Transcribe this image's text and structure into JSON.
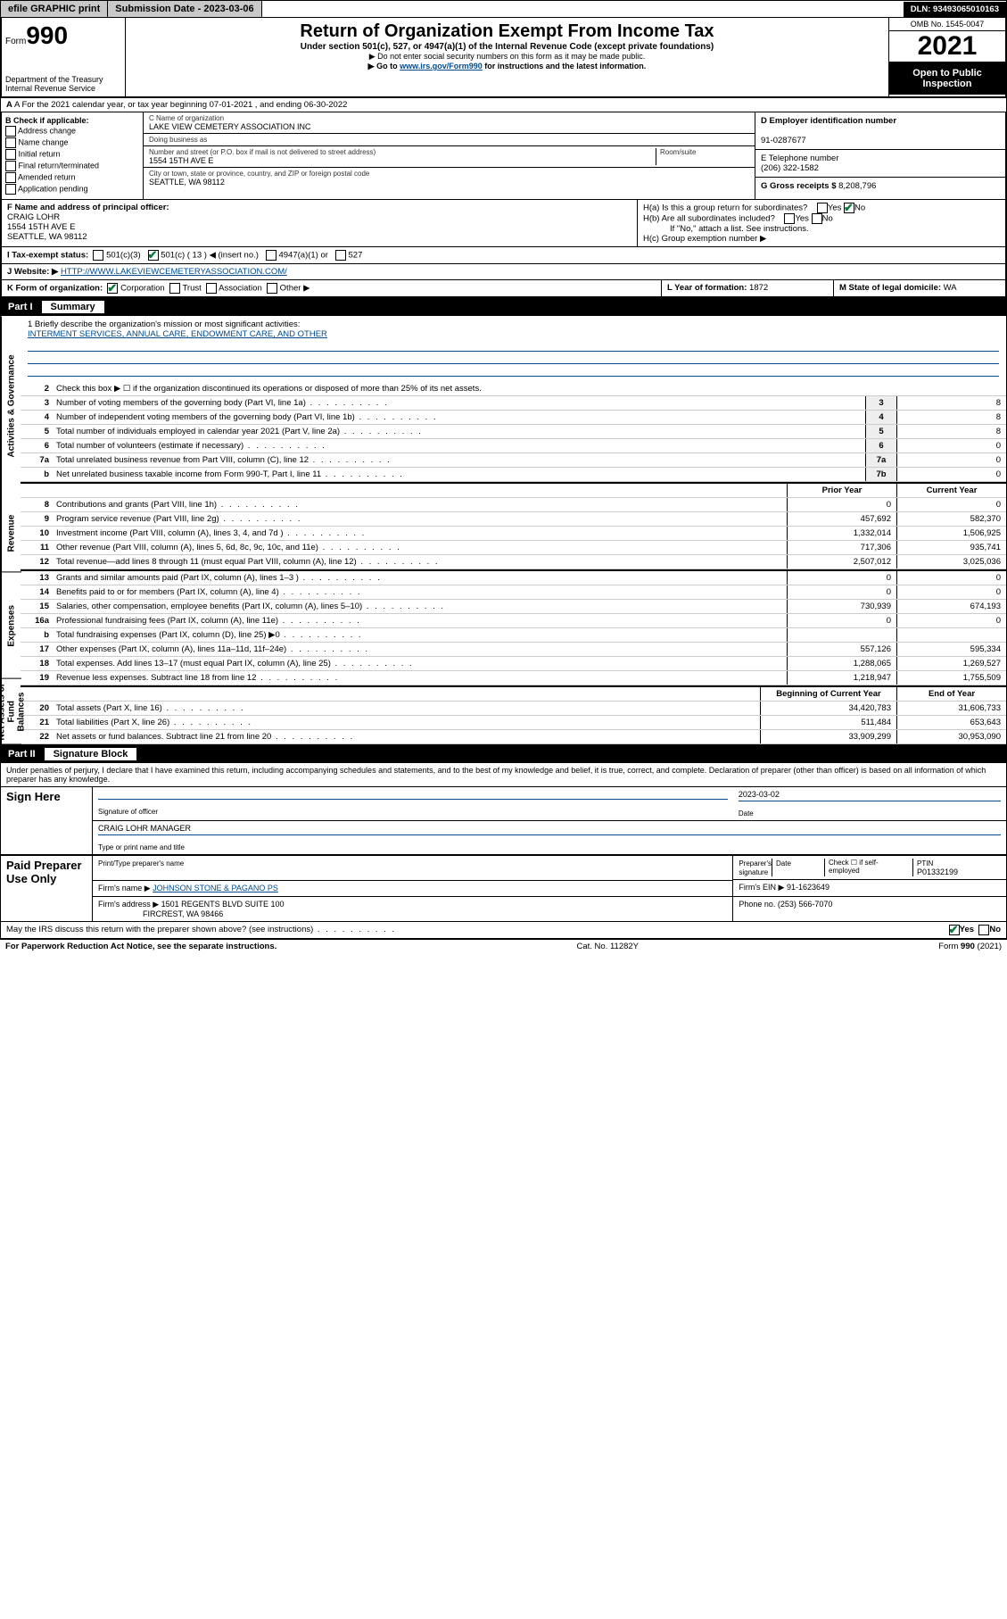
{
  "topbar": {
    "efile": "efile GRAPHIC print",
    "submission_label": "Submission Date - ",
    "submission_date": "2023-03-06",
    "dln_label": "DLN: ",
    "dln": "93493065010163"
  },
  "header": {
    "form_label": "Form",
    "form_number": "990",
    "dept": "Department of the Treasury",
    "irs": "Internal Revenue Service",
    "title": "Return of Organization Exempt From Income Tax",
    "subtitle": "Under section 501(c), 527, or 4947(a)(1) of the Internal Revenue Code (except private foundations)",
    "note1": "▶ Do not enter social security numbers on this form as it may be made public.",
    "note2_pre": "▶ Go to ",
    "note2_link": "www.irs.gov/Form990",
    "note2_post": " for instructions and the latest information.",
    "omb": "OMB No. 1545-0047",
    "year": "2021",
    "open": "Open to Public Inspection"
  },
  "rowA": {
    "text": "A For the 2021 calendar year, or tax year beginning 07-01-2021  , and ending 06-30-2022"
  },
  "boxB": {
    "label": "B Check if applicable:",
    "items": [
      "Address change",
      "Name change",
      "Initial return",
      "Final return/terminated",
      "Amended return",
      "Application pending"
    ]
  },
  "boxC": {
    "name_lbl": "C Name of organization",
    "name": "LAKE VIEW CEMETERY ASSOCIATION INC",
    "dba_lbl": "Doing business as",
    "dba": "",
    "street_lbl": "Number and street (or P.O. box if mail is not delivered to street address)",
    "street": "1554 15TH AVE E",
    "room_lbl": "Room/suite",
    "city_lbl": "City or town, state or province, country, and ZIP or foreign postal code",
    "city": "SEATTLE, WA  98112"
  },
  "boxD": {
    "ein_lbl": "D Employer identification number",
    "ein": "91-0287677",
    "phone_lbl": "E Telephone number",
    "phone": "(206) 322-1582",
    "gross_lbl": "G Gross receipts $ ",
    "gross": "8,208,796"
  },
  "boxF": {
    "lbl": "F Name and address of principal officer:",
    "name": "CRAIG LOHR",
    "addr1": "1554 15TH AVE E",
    "addr2": "SEATTLE, WA  98112"
  },
  "boxH": {
    "ha": "H(a)  Is this a group return for subordinates?",
    "hb": "H(b)  Are all subordinates included?",
    "hb_note": "If \"No,\" attach a list. See instructions.",
    "hc": "H(c)  Group exemption number ▶"
  },
  "rowI": {
    "lbl": "I   Tax-exempt status:",
    "c3": "501(c)(3)",
    "c_other": "501(c) ( 13 ) ◀ (insert no.)",
    "c4947": "4947(a)(1) or",
    "c527": "527"
  },
  "rowJ": {
    "lbl": "J   Website: ▶  ",
    "url": "HTTP://WWW.LAKEVIEWCEMETERYASSOCIATION.COM/"
  },
  "rowK": {
    "lbl": "K Form of organization:",
    "opts": [
      "Corporation",
      "Trust",
      "Association",
      "Other ▶"
    ]
  },
  "rowL": {
    "lbl": "L Year of formation: ",
    "val": "1872"
  },
  "rowM": {
    "lbl": "M State of legal domicile: ",
    "val": "WA"
  },
  "part1": {
    "hdr": "Part I",
    "title": "Summary",
    "mission_lbl": "1  Briefly describe the organization's mission or most significant activities:",
    "mission": "INTERMENT SERVICES, ANNUAL CARE, ENDOWMENT CARE, AND OTHER",
    "line2": "Check this box ▶ ☐  if the organization discontinued its operations or disposed of more than 25% of its net assets.",
    "lines_gov": [
      {
        "n": "3",
        "t": "Number of voting members of the governing body (Part VI, line 1a)",
        "b": "3",
        "v": "8"
      },
      {
        "n": "4",
        "t": "Number of independent voting members of the governing body (Part VI, line 1b)",
        "b": "4",
        "v": "8"
      },
      {
        "n": "5",
        "t": "Total number of individuals employed in calendar year 2021 (Part V, line 2a)",
        "b": "5",
        "v": "8"
      },
      {
        "n": "6",
        "t": "Total number of volunteers (estimate if necessary)",
        "b": "6",
        "v": "0"
      },
      {
        "n": "7a",
        "t": "Total unrelated business revenue from Part VIII, column (C), line 12",
        "b": "7a",
        "v": "0"
      },
      {
        "n": "b",
        "t": "Net unrelated business taxable income from Form 990-T, Part I, line 11",
        "b": "7b",
        "v": "0"
      }
    ],
    "col_prior": "Prior Year",
    "col_current": "Current Year",
    "lines_rev": [
      {
        "n": "8",
        "t": "Contributions and grants (Part VIII, line 1h)",
        "p": "0",
        "c": "0"
      },
      {
        "n": "9",
        "t": "Program service revenue (Part VIII, line 2g)",
        "p": "457,692",
        "c": "582,370"
      },
      {
        "n": "10",
        "t": "Investment income (Part VIII, column (A), lines 3, 4, and 7d )",
        "p": "1,332,014",
        "c": "1,506,925"
      },
      {
        "n": "11",
        "t": "Other revenue (Part VIII, column (A), lines 5, 6d, 8c, 9c, 10c, and 11e)",
        "p": "717,306",
        "c": "935,741"
      },
      {
        "n": "12",
        "t": "Total revenue—add lines 8 through 11 (must equal Part VIII, column (A), line 12)",
        "p": "2,507,012",
        "c": "3,025,036"
      }
    ],
    "lines_exp": [
      {
        "n": "13",
        "t": "Grants and similar amounts paid (Part IX, column (A), lines 1–3 )",
        "p": "0",
        "c": "0"
      },
      {
        "n": "14",
        "t": "Benefits paid to or for members (Part IX, column (A), line 4)",
        "p": "0",
        "c": "0"
      },
      {
        "n": "15",
        "t": "Salaries, other compensation, employee benefits (Part IX, column (A), lines 5–10)",
        "p": "730,939",
        "c": "674,193"
      },
      {
        "n": "16a",
        "t": "Professional fundraising fees (Part IX, column (A), line 11e)",
        "p": "0",
        "c": "0"
      },
      {
        "n": "b",
        "t": "Total fundraising expenses (Part IX, column (D), line 25) ▶0",
        "p": "",
        "c": ""
      },
      {
        "n": "17",
        "t": "Other expenses (Part IX, column (A), lines 11a–11d, 11f–24e)",
        "p": "557,126",
        "c": "595,334"
      },
      {
        "n": "18",
        "t": "Total expenses. Add lines 13–17 (must equal Part IX, column (A), line 25)",
        "p": "1,288,065",
        "c": "1,269,527"
      },
      {
        "n": "19",
        "t": "Revenue less expenses. Subtract line 18 from line 12",
        "p": "1,218,947",
        "c": "1,755,509"
      }
    ],
    "col_begin": "Beginning of Current Year",
    "col_end": "End of Year",
    "lines_net": [
      {
        "n": "20",
        "t": "Total assets (Part X, line 16)",
        "p": "34,420,783",
        "c": "31,606,733"
      },
      {
        "n": "21",
        "t": "Total liabilities (Part X, line 26)",
        "p": "511,484",
        "c": "653,643"
      },
      {
        "n": "22",
        "t": "Net assets or fund balances. Subtract line 21 from line 20",
        "p": "33,909,299",
        "c": "30,953,090"
      }
    ],
    "vtabs": [
      "Activities & Governance",
      "Revenue",
      "Expenses",
      "Net Assets or Fund Balances"
    ]
  },
  "part2": {
    "hdr": "Part II",
    "title": "Signature Block",
    "declaration": "Under penalties of perjury, I declare that I have examined this return, including accompanying schedules and statements, and to the best of my knowledge and belief, it is true, correct, and complete. Declaration of preparer (other than officer) is based on all information of which preparer has any knowledge.",
    "sign_here": "Sign Here",
    "sig_officer": "Signature of officer",
    "sig_date": "2023-03-02",
    "date_lbl": "Date",
    "officer_name": "CRAIG LOHR  MANAGER",
    "officer_lbl": "Type or print name and title",
    "paid_prep": "Paid Preparer Use Only",
    "prep_name_lbl": "Print/Type preparer's name",
    "prep_sig_lbl": "Preparer's signature",
    "check_self": "Check ☐ if self-employed",
    "ptin_lbl": "PTIN",
    "ptin": "P01332199",
    "firm_name_lbl": "Firm's name    ▶ ",
    "firm_name": "JOHNSON STONE & PAGANO PS",
    "firm_ein_lbl": "Firm's EIN ▶ ",
    "firm_ein": "91-1623649",
    "firm_addr_lbl": "Firm's address ▶ ",
    "firm_addr1": "1501 REGENTS BLVD SUITE 100",
    "firm_addr2": "FIRCREST, WA  98466",
    "firm_phone_lbl": "Phone no. ",
    "firm_phone": "(253) 566-7070",
    "discuss": "May the IRS discuss this return with the preparer shown above? (see instructions)"
  },
  "footer": {
    "left": "For Paperwork Reduction Act Notice, see the separate instructions.",
    "mid": "Cat. No. 11282Y",
    "right": "Form 990 (2021)"
  },
  "yesno": {
    "yes": "Yes",
    "no": "No"
  }
}
